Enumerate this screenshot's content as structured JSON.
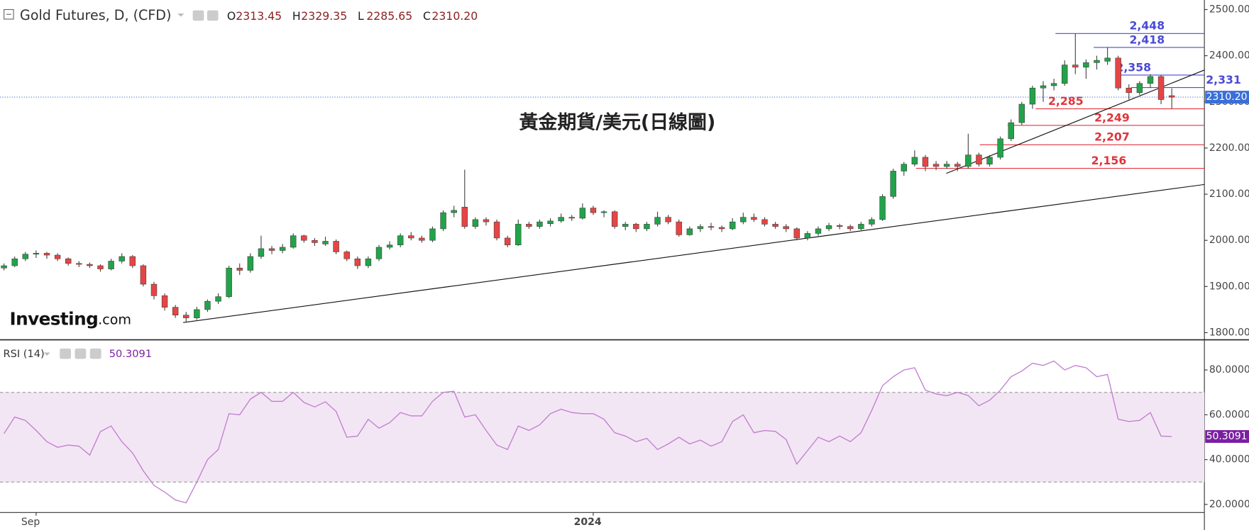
{
  "chart_data": [
    {
      "type": "candlestick",
      "title": "Gold Futures, D, (CFD)",
      "ohlc": [
        {
          "label": "O",
          "value": "2313.45"
        },
        {
          "label": "H",
          "value": "2329.35"
        },
        {
          "label": "L",
          "value": "2285.65"
        },
        {
          "label": "C",
          "value": "2310.20"
        }
      ],
      "annotation": "黃金期貨/美元(日線圖)",
      "watermark": [
        "Investing",
        ".com"
      ],
      "up_color": "#22a34a",
      "down_color": "#e64545",
      "ylim": [
        1784.5,
        2520.7
      ],
      "yticks": [
        {
          "value": 1800,
          "label": "1800.00"
        },
        {
          "value": 1900,
          "label": "1900.00"
        },
        {
          "value": 2000,
          "label": "2000.00"
        },
        {
          "value": 2100,
          "label": "2100.00"
        },
        {
          "value": 2200,
          "label": "2200.00"
        },
        {
          "value": 2300,
          "label": "2300.00"
        },
        {
          "value": 2400,
          "label": "2400.00"
        },
        {
          "value": 2500,
          "label": "2500.00"
        }
      ],
      "categories": [
        null,
        null,
        null,
        "Sep",
        null,
        null,
        null,
        null,
        null,
        null,
        null,
        null,
        null,
        null,
        null,
        null,
        null,
        null,
        null,
        null,
        null,
        null,
        null,
        null,
        null,
        null,
        null,
        null,
        null,
        null,
        null,
        null,
        null,
        null,
        null,
        null,
        null,
        null,
        null,
        null,
        null,
        null,
        null,
        null,
        null,
        null,
        null,
        null,
        null,
        null,
        null,
        null,
        null,
        null,
        null,
        "2024",
        null,
        null,
        null,
        null,
        null,
        null,
        null,
        null,
        null,
        null,
        null,
        null,
        null,
        null,
        null,
        null,
        null,
        null,
        null,
        null,
        null,
        null,
        null,
        null,
        null,
        null,
        null,
        null,
        null,
        null,
        null,
        null,
        null,
        null,
        null,
        null,
        null,
        null,
        null,
        null,
        null,
        null,
        null,
        null,
        null,
        null,
        null,
        null,
        null,
        null,
        null,
        null,
        null,
        null
      ],
      "candles": [
        [
          1940,
          1950,
          1935,
          1945
        ],
        [
          1945,
          1965,
          1942,
          1960
        ],
        [
          1960,
          1975,
          1955,
          1970
        ],
        [
          1970,
          1978,
          1962,
          1972
        ],
        [
          1972,
          1975,
          1960,
          1968
        ],
        [
          1968,
          1972,
          1955,
          1960
        ],
        [
          1960,
          1963,
          1945,
          1950
        ],
        [
          1950,
          1955,
          1942,
          1948
        ],
        [
          1948,
          1952,
          1940,
          1945
        ],
        [
          1945,
          1948,
          1932,
          1938
        ],
        [
          1938,
          1960,
          1935,
          1955
        ],
        [
          1955,
          1972,
          1950,
          1965
        ],
        [
          1965,
          1968,
          1940,
          1945
        ],
        [
          1945,
          1948,
          1900,
          1905
        ],
        [
          1905,
          1910,
          1872,
          1880
        ],
        [
          1880,
          1885,
          1848,
          1855
        ],
        [
          1855,
          1860,
          1832,
          1838
        ],
        [
          1838,
          1845,
          1822,
          1832
        ],
        [
          1832,
          1856,
          1828,
          1850
        ],
        [
          1850,
          1872,
          1845,
          1868
        ],
        [
          1868,
          1885,
          1862,
          1878
        ],
        [
          1878,
          1945,
          1875,
          1940
        ],
        [
          1940,
          1950,
          1925,
          1935
        ],
        [
          1935,
          1972,
          1930,
          1965
        ],
        [
          1965,
          2010,
          1960,
          1982
        ],
        [
          1982,
          1988,
          1970,
          1978
        ],
        [
          1978,
          1992,
          1972,
          1985
        ],
        [
          1985,
          2015,
          1982,
          2010
        ],
        [
          2010,
          2012,
          1995,
          2000
        ],
        [
          2000,
          2005,
          1988,
          1995
        ],
        [
          1992,
          2008,
          1988,
          1998
        ],
        [
          1998,
          2002,
          1970,
          1975
        ],
        [
          1975,
          1978,
          1955,
          1960
        ],
        [
          1960,
          1965,
          1938,
          1945
        ],
        [
          1945,
          1965,
          1940,
          1960
        ],
        [
          1960,
          1990,
          1955,
          1985
        ],
        [
          1985,
          1998,
          1980,
          1990
        ],
        [
          1990,
          2015,
          1985,
          2010
        ],
        [
          2010,
          2018,
          2000,
          2005
        ],
        [
          2005,
          2010,
          1995,
          2000
        ],
        [
          2000,
          2030,
          1996,
          2025
        ],
        [
          2025,
          2065,
          2020,
          2060
        ],
        [
          2060,
          2075,
          2050,
          2065
        ],
        [
          2072,
          2153,
          2025,
          2030
        ],
        [
          2030,
          2050,
          2025,
          2045
        ],
        [
          2045,
          2050,
          2032,
          2040
        ],
        [
          2040,
          2045,
          2000,
          2005
        ],
        [
          2005,
          2010,
          1985,
          1990
        ],
        [
          1990,
          2045,
          1988,
          2035
        ],
        [
          2035,
          2040,
          2025,
          2030
        ],
        [
          2030,
          2045,
          2025,
          2040
        ],
        [
          2036,
          2048,
          2030,
          2042
        ],
        [
          2042,
          2058,
          2038,
          2050
        ],
        [
          2050,
          2055,
          2042,
          2048
        ],
        [
          2048,
          2080,
          2045,
          2070
        ],
        [
          2070,
          2075,
          2055,
          2060
        ],
        [
          2060,
          2065,
          2050,
          2062
        ],
        [
          2062,
          2065,
          2025,
          2030
        ],
        [
          2030,
          2040,
          2022,
          2035
        ],
        [
          2035,
          2038,
          2018,
          2025
        ],
        [
          2025,
          2040,
          2020,
          2035
        ],
        [
          2035,
          2062,
          2030,
          2050
        ],
        [
          2050,
          2055,
          2035,
          2040
        ],
        [
          2040,
          2045,
          2008,
          2012
        ],
        [
          2012,
          2030,
          2010,
          2025
        ],
        [
          2025,
          2035,
          2018,
          2030
        ],
        [
          2030,
          2038,
          2022,
          2028
        ],
        [
          2028,
          2032,
          2018,
          2025
        ],
        [
          2025,
          2048,
          2022,
          2040
        ],
        [
          2040,
          2060,
          2035,
          2050
        ],
        [
          2050,
          2058,
          2040,
          2045
        ],
        [
          2045,
          2050,
          2030,
          2035
        ],
        [
          2035,
          2040,
          2025,
          2030
        ],
        [
          2030,
          2035,
          2018,
          2025
        ],
        [
          2025,
          2028,
          2000,
          2005
        ],
        [
          2005,
          2020,
          2000,
          2015
        ],
        [
          2015,
          2030,
          2010,
          2025
        ],
        [
          2025,
          2038,
          2020,
          2032
        ],
        [
          2032,
          2036,
          2024,
          2030
        ],
        [
          2030,
          2034,
          2020,
          2025
        ],
        [
          2025,
          2040,
          2022,
          2035
        ],
        [
          2035,
          2050,
          2030,
          2045
        ],
        [
          2045,
          2100,
          2042,
          2095
        ],
        [
          2095,
          2155,
          2090,
          2150
        ],
        [
          2150,
          2170,
          2140,
          2165
        ],
        [
          2165,
          2195,
          2160,
          2180
        ],
        [
          2180,
          2185,
          2150,
          2160
        ],
        [
          2165,
          2172,
          2152,
          2160
        ],
        [
          2160,
          2172,
          2155,
          2165
        ],
        [
          2165,
          2170,
          2150,
          2160
        ],
        [
          2160,
          2231,
          2155,
          2185
        ],
        [
          2185,
          2190,
          2160,
          2165
        ],
        [
          2165,
          2185,
          2160,
          2180
        ],
        [
          2180,
          2225,
          2175,
          2220
        ],
        [
          2220,
          2262,
          2215,
          2255
        ],
        [
          2255,
          2300,
          2250,
          2295
        ],
        [
          2295,
          2335,
          2285,
          2330
        ],
        [
          2330,
          2345,
          2300,
          2335
        ],
        [
          2335,
          2350,
          2325,
          2340
        ],
        [
          2340,
          2390,
          2335,
          2380
        ],
        [
          2380,
          2448,
          2360,
          2375
        ],
        [
          2375,
          2392,
          2350,
          2385
        ],
        [
          2385,
          2400,
          2370,
          2390
        ],
        [
          2388,
          2418,
          2380,
          2395
        ],
        [
          2395,
          2400,
          2325,
          2330
        ],
        [
          2330,
          2338,
          2305,
          2320
        ],
        [
          2320,
          2345,
          2315,
          2340
        ],
        [
          2340,
          2360,
          2330,
          2355
        ],
        [
          2355,
          2358,
          2295,
          2305
        ],
        [
          2313.45,
          2329.35,
          2285.65,
          2310.2
        ]
      ],
      "levels": [
        {
          "value": 2448,
          "label": "2,448",
          "color": "#4b4bd4"
        },
        {
          "value": 2418,
          "label": "2,418",
          "color": "#4b4bd4"
        },
        {
          "value": 2358,
          "label": "2,358",
          "color": "#4b4bd4"
        },
        {
          "value": 2331,
          "label": "2,331",
          "color": "#4b4bd4"
        },
        {
          "value": 2285,
          "label": "2,285",
          "color": "#e0343c"
        },
        {
          "value": 2249,
          "label": "2,249",
          "color": "#e0343c"
        },
        {
          "value": 2207,
          "label": "2,207",
          "color": "#e0343c"
        },
        {
          "value": 2156,
          "label": "2,156",
          "color": "#e0343c"
        }
      ],
      "trendlines": [
        {
          "values": [
            1822,
            2121
          ]
        },
        {
          "values": [
            2145,
            2369
          ]
        }
      ],
      "last_price": {
        "value": 2310.2,
        "label": "2310.20",
        "color": "#3a6fd8"
      }
    },
    {
      "type": "line",
      "title": "RSI (14)",
      "header_value": "50.3091",
      "color": "#c07fd0",
      "ylim": [
        16.4,
        93.1
      ],
      "yticks": [
        {
          "value": 20,
          "label": "20.0000"
        },
        {
          "value": 40,
          "label": "40.0000"
        },
        {
          "value": 60,
          "label": "60.0000"
        },
        {
          "value": 80,
          "label": "80.0000"
        }
      ],
      "bands": [
        30,
        70
      ],
      "band_color": "#f3e6f4",
      "values": [
        51.6,
        59,
        57.5,
        53,
        48,
        45.5,
        46.5,
        46,
        42,
        52.5,
        55,
        48,
        43,
        35,
        28.5,
        25.5,
        22,
        20.7,
        30,
        40,
        44.5,
        60.5,
        60,
        67,
        70,
        66,
        66,
        70,
        65.5,
        63.5,
        65.8,
        61.5,
        50,
        50.5,
        58,
        54,
        56.5,
        61,
        59.5,
        59.5,
        66,
        70,
        70.5,
        59,
        60,
        53,
        46.5,
        44.5,
        55,
        53,
        55.5,
        60.5,
        62.5,
        61,
        60.5,
        60.5,
        58,
        52,
        50.5,
        48,
        49.5,
        44.5,
        47,
        50,
        47,
        48.7,
        46,
        48,
        57,
        60,
        52,
        53,
        52.6,
        49,
        38,
        44,
        50,
        48,
        50.5,
        48,
        52,
        62,
        73,
        77,
        80,
        81,
        71,
        69.3,
        68.5,
        70,
        68.6,
        64,
        66.5,
        71,
        77,
        79.5,
        83,
        82,
        84,
        80,
        82,
        81,
        77,
        78,
        58,
        57,
        57.5,
        61,
        50.5,
        50.3091
      ],
      "last_value": {
        "value": 50.3091,
        "label": "50.3091",
        "color": "#7b1fa2"
      }
    }
  ]
}
